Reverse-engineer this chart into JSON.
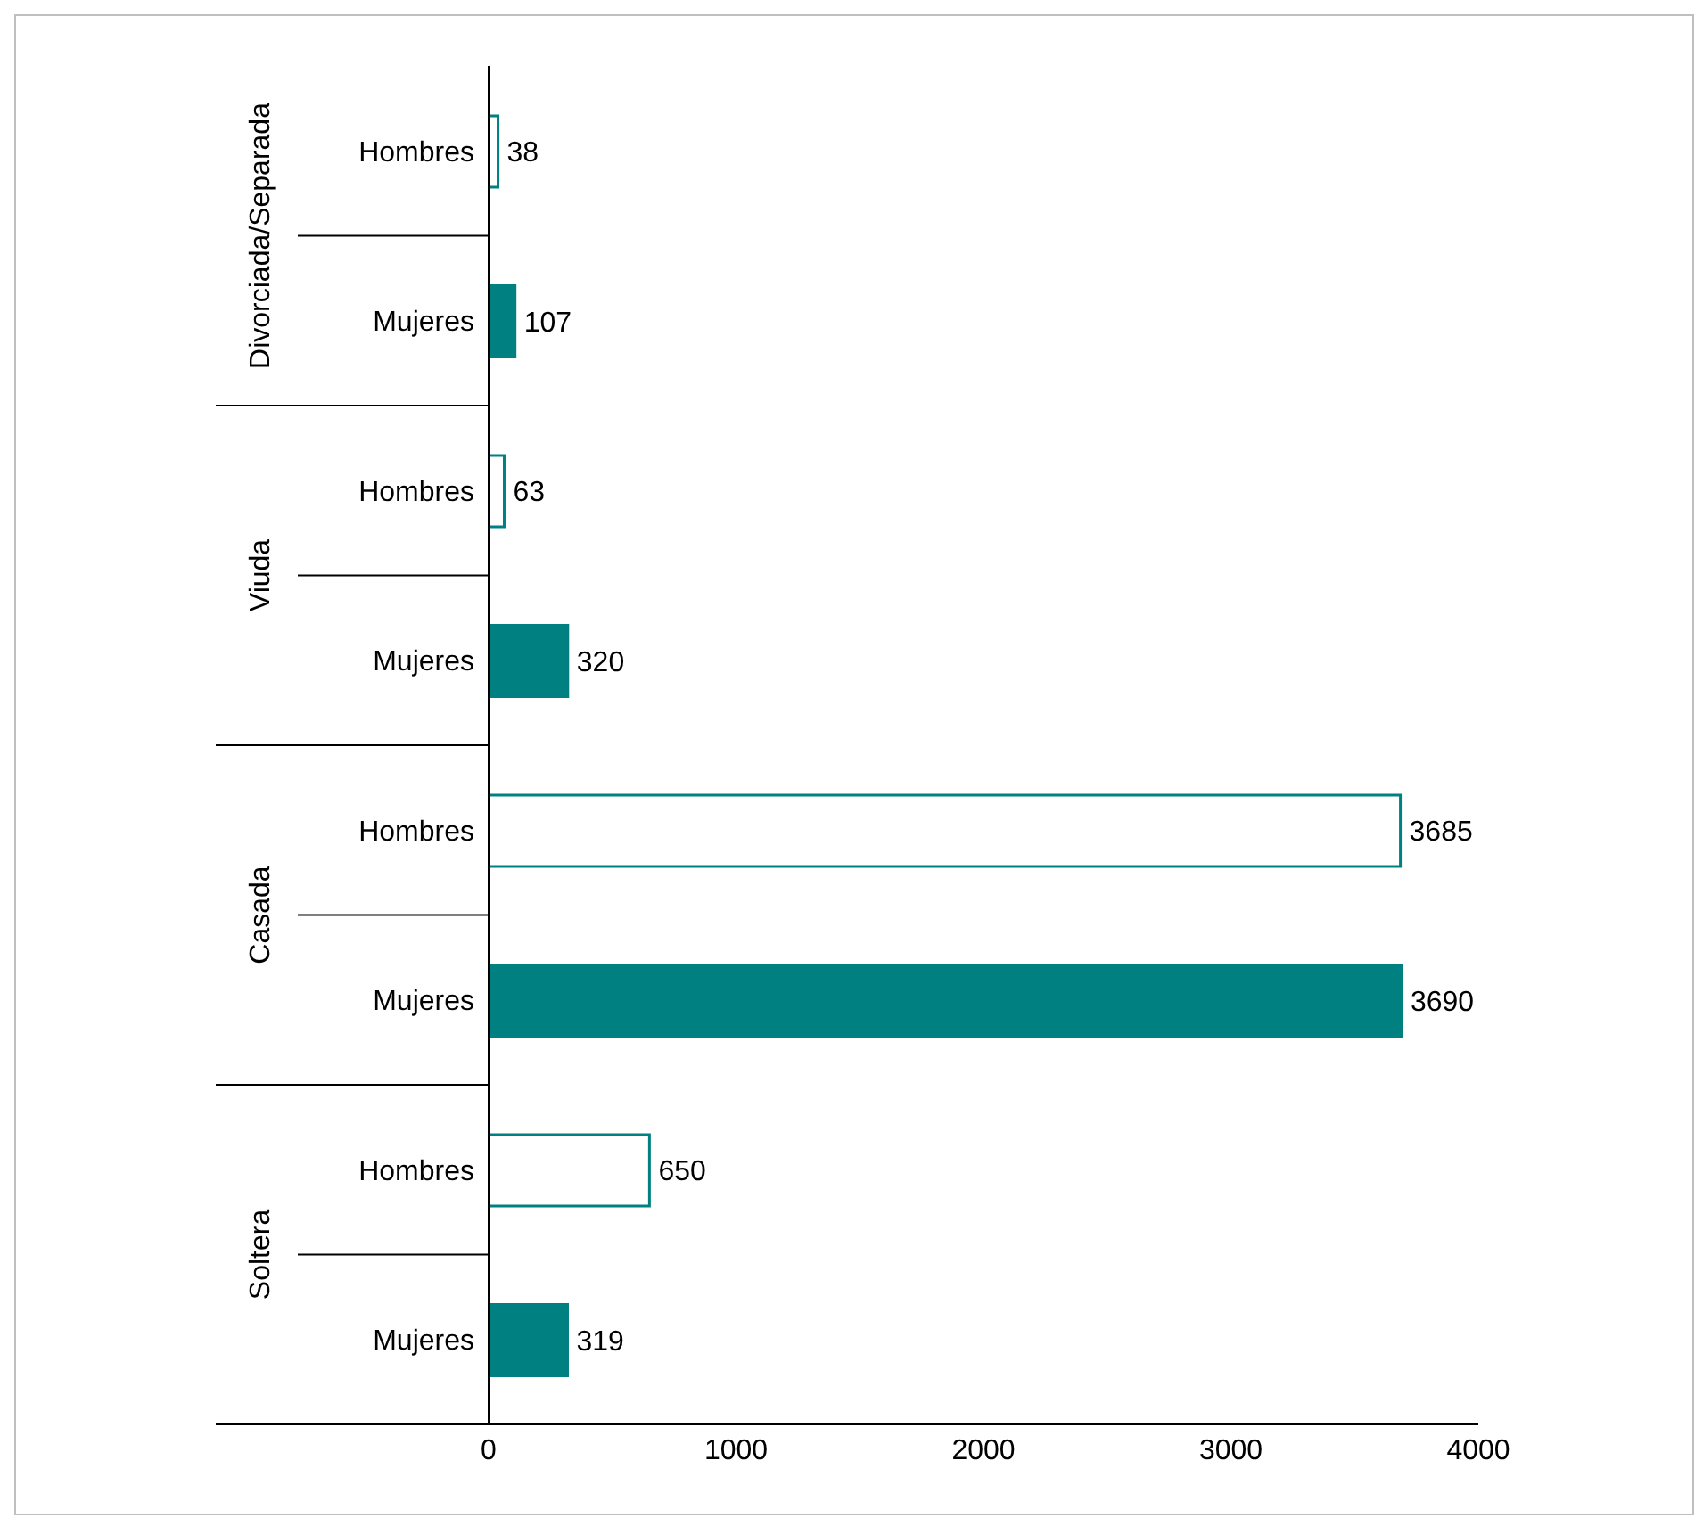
{
  "chart_data": {
    "type": "bar",
    "orientation": "horizontal",
    "stacked": true,
    "categories": [
      "Hombres",
      "Mujeres",
      "Hombres",
      "Mujeres",
      "Hombres",
      "Mujeres",
      "Hombres",
      "Mujeres"
    ],
    "series": [
      {
        "color": "#008080",
        "values": [
          null,
          107,
          null,
          320,
          null,
          3690,
          null,
          319
        ]
      },
      {
        "color": "#ffffff",
        "values": [
          38,
          null,
          63,
          null,
          3685,
          null,
          650,
          null
        ]
      }
    ],
    "annotations": [
      "Divorciada/Separada",
      "Viuda",
      "Casada",
      "Soltera"
    ],
    "xlim": [
      0,
      4000
    ],
    "xticks": [
      0,
      1000,
      2000,
      3000,
      4000
    ],
    "data_labels": true
  }
}
